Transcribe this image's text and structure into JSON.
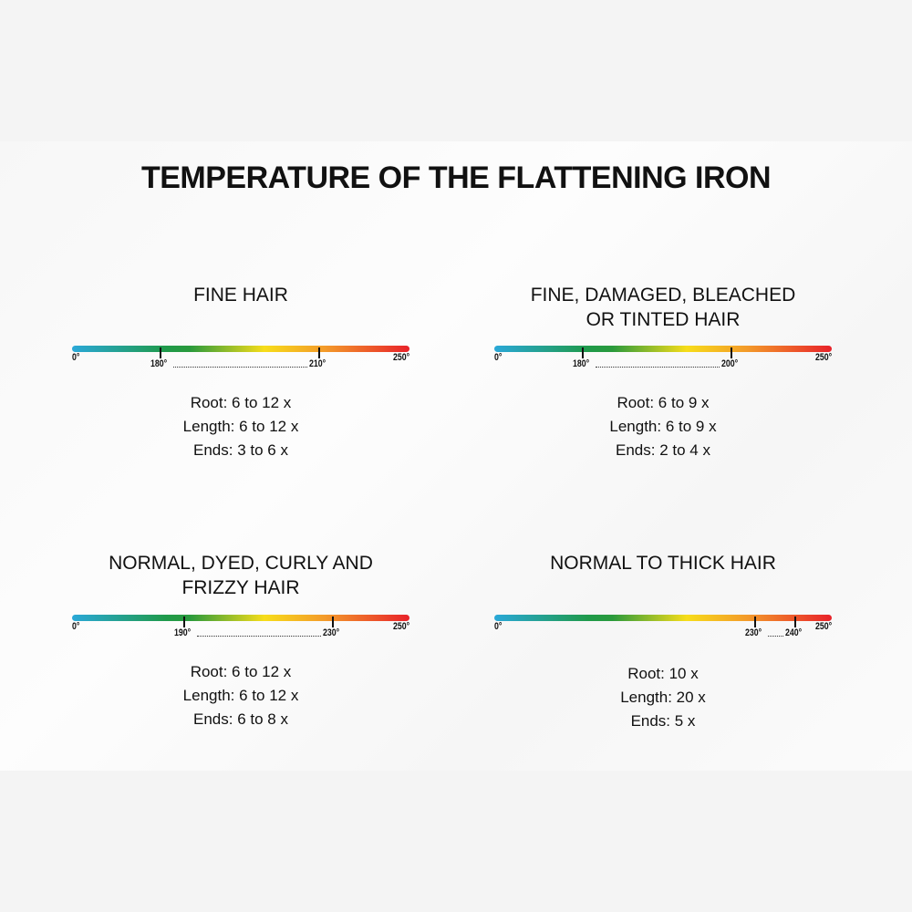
{
  "title": "TEMPERATURE OF THE FLATTENING IRON",
  "panels": [
    {
      "heading": "FINE HAIR",
      "scale_min": "0°",
      "scale_max": "250°",
      "range": [
        180,
        210
      ],
      "range_labels": [
        "180°",
        "210°"
      ],
      "lines": [
        "Root: 6 to 12 x",
        "Length: 6 to 12 x",
        "Ends: 3 to 6 x"
      ]
    },
    {
      "heading": "FINE, DAMAGED, BLEACHED OR TINTED HAIR",
      "scale_min": "0°",
      "scale_max": "250°",
      "range": [
        180,
        200
      ],
      "range_labels": [
        "180°",
        "200°"
      ],
      "lines": [
        "Root: 6 to 9 x",
        "Length: 6 to 9 x",
        "Ends: 2 to 4 x"
      ]
    },
    {
      "heading": "NORMAL, DYED, CURLY AND FRIZZY HAIR",
      "scale_min": "0°",
      "scale_max": "250°",
      "range": [
        190,
        230
      ],
      "range_labels": [
        "190°",
        "230°"
      ],
      "lines": [
        "Root: 6 to 12 x",
        "Length: 6 to 12 x",
        "Ends: 6 to 8 x"
      ]
    },
    {
      "heading": "NORMAL TO THICK HAIR",
      "scale_min": "0°",
      "scale_max": "250°",
      "range": [
        230,
        240
      ],
      "range_labels": [
        "230°",
        "240°"
      ],
      "lines": [
        "Root: 10 x",
        "Length: 20 x",
        "Ends: 5 x"
      ]
    }
  ]
}
